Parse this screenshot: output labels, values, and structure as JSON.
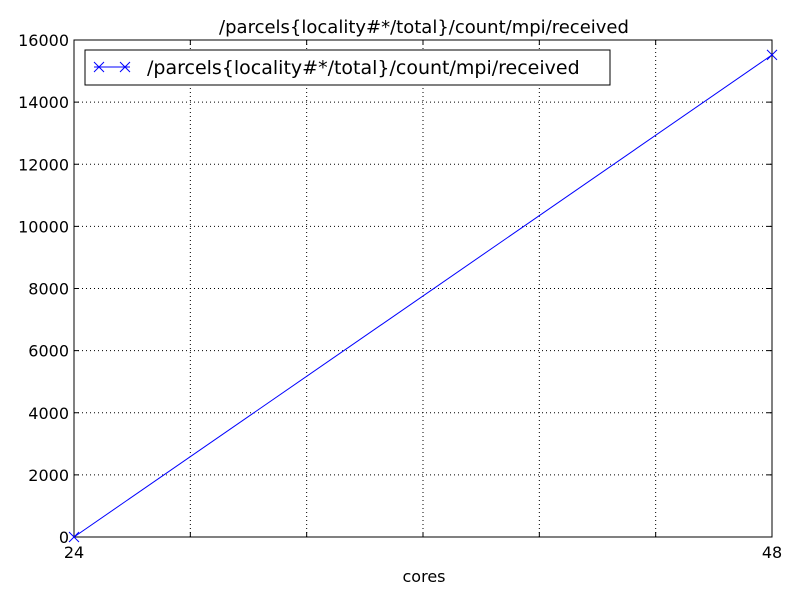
{
  "chart_data": {
    "type": "line",
    "title": "/parcels{locality#*/total}/count/mpi/received",
    "xlabel": "cores",
    "ylabel": "",
    "x": [
      24,
      48
    ],
    "xlim": [
      24,
      48
    ],
    "ylim": [
      0,
      16000
    ],
    "xticks": [
      24,
      28,
      32,
      36,
      40,
      44,
      48
    ],
    "xtick_labels": [
      "24",
      "",
      "",
      "",
      "",
      "",
      "48"
    ],
    "yticks": [
      0,
      2000,
      4000,
      6000,
      8000,
      10000,
      12000,
      14000,
      16000
    ],
    "ytick_labels": [
      "0",
      "2000",
      "4000",
      "6000",
      "8000",
      "10000",
      "12000",
      "14000",
      "16000"
    ],
    "grid": true,
    "legend_position": "top-left",
    "series": [
      {
        "name": "/parcels{locality#*/total}/count/mpi/received",
        "x": [
          24,
          48
        ],
        "values": [
          0,
          15520
        ],
        "color": "#0000ff",
        "marker": "x"
      }
    ]
  }
}
